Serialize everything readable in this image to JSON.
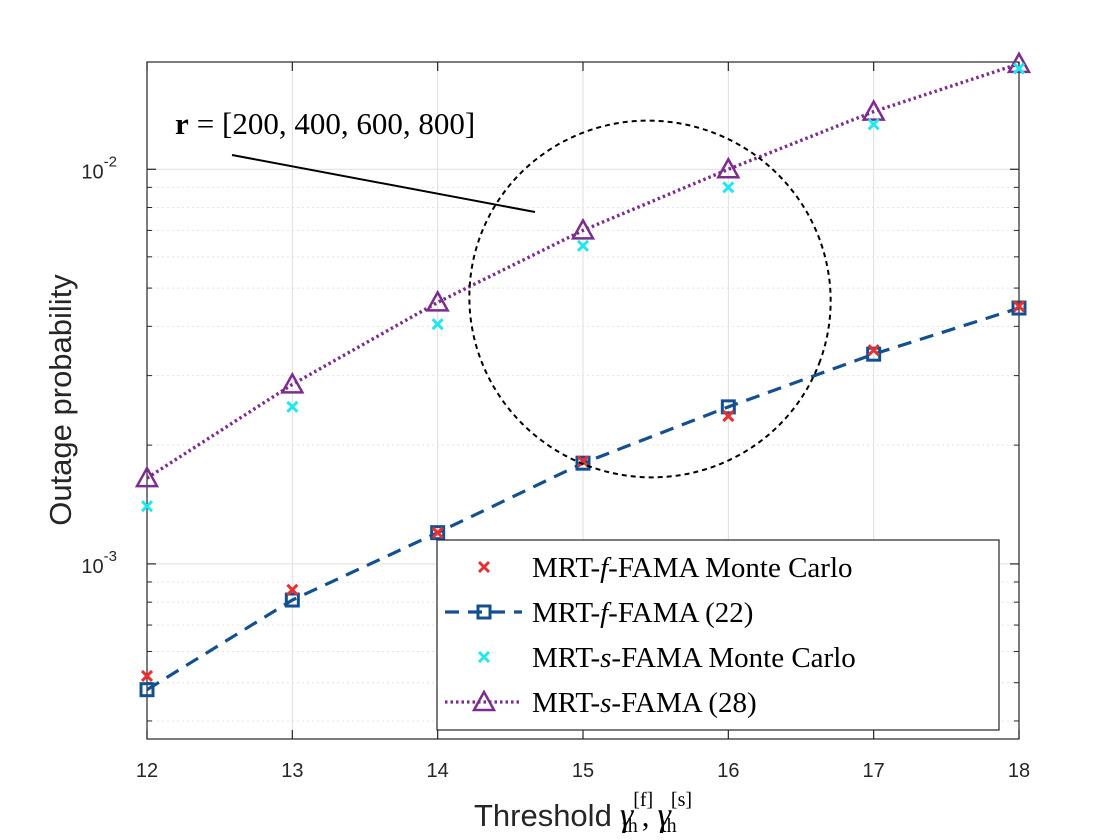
{
  "chart_data": {
    "type": "line",
    "yscale": "log",
    "xlabel": "Threshold",
    "xlabel_math": {
      "g1": "γ",
      "sup1": "[f]",
      "sub": "th",
      "comma": ",",
      "g2": "γ",
      "sup2": "[s]"
    },
    "ylabel": "Outage probability",
    "xlim": [
      12,
      18
    ],
    "ylim": [
      0.00036,
      0.0187
    ],
    "x_ticks": [
      "12",
      "13",
      "14",
      "15",
      "16",
      "17",
      "18"
    ],
    "y_ticks": [
      {
        "mantissa": "10",
        "exponent": "-3",
        "value": 0.001
      },
      {
        "mantissa": "10",
        "exponent": "-2",
        "value": 0.01
      }
    ],
    "grid": true,
    "legend_position": "bottom-right",
    "x": [
      12,
      13,
      14,
      15,
      16,
      17,
      18
    ],
    "series": [
      {
        "name": "MRT-f-FAMA Monte Carlo",
        "legend": {
          "pre": "MRT-",
          "var": "f",
          "post": "-FAMA Monte Carlo"
        },
        "marker": "x",
        "line": "none",
        "color": "#e83030",
        "values": [
          0.00052,
          0.00086,
          0.0012,
          0.00182,
          0.00237,
          0.00348,
          0.0045
        ]
      },
      {
        "name": "MRT-f-FAMA (22)",
        "legend": {
          "pre": "MRT-",
          "var": "f",
          "post": "-FAMA (22)"
        },
        "marker": "square",
        "line": "dashed",
        "color": "#14508f",
        "values": [
          0.00048,
          0.00081,
          0.0012,
          0.0018,
          0.0025,
          0.0034,
          0.00445
        ]
      },
      {
        "name": "MRT-s-FAMA Monte Carlo",
        "legend": {
          "pre": "MRT-",
          "var": "s",
          "post": "-FAMA Monte Carlo"
        },
        "marker": "x",
        "line": "none",
        "color": "#22e8ee",
        "values": [
          0.0014,
          0.0025,
          0.00405,
          0.0064,
          0.009,
          0.013,
          0.018
        ]
      },
      {
        "name": "MRT-s-FAMA (28)",
        "legend": {
          "pre": "MRT-",
          "var": "s",
          "post": "-FAMA (28)"
        },
        "marker": "triangle",
        "line": "dotted",
        "color": "#7b2d8e",
        "values": [
          0.00165,
          0.00285,
          0.0046,
          0.007,
          0.01,
          0.014,
          0.0185
        ]
      }
    ],
    "annotation": {
      "bold": "r",
      "text": "= [200, 400, 600, 800]"
    }
  }
}
